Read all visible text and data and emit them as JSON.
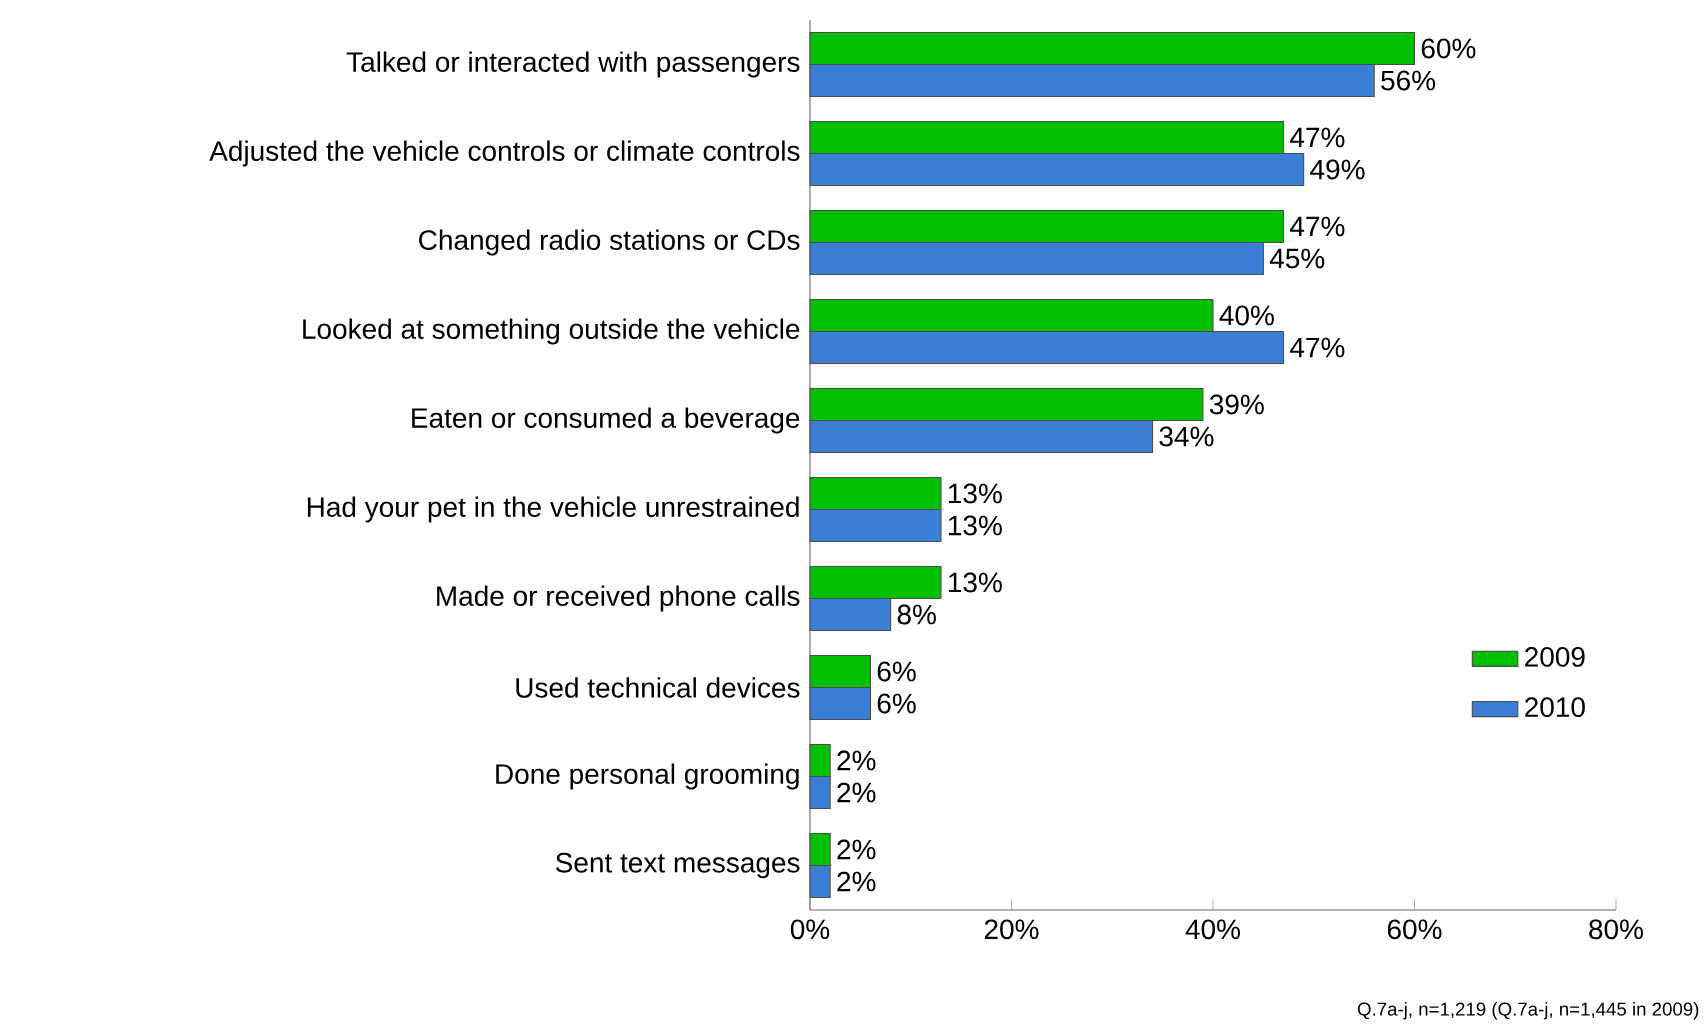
{
  "chart_data": {
    "type": "bar",
    "orientation": "horizontal",
    "categories": [
      "Talked or interacted with passengers",
      "Adjusted the vehicle controls or climate controls",
      "Changed radio stations or CDs",
      "Looked at something outside the vehicle",
      "Eaten or consumed a beverage",
      "Had your pet in the vehicle unrestrained",
      "Made or received phone calls",
      "Used technical devices",
      "Done personal grooming",
      "Sent text messages"
    ],
    "series": [
      {
        "name": "2009",
        "color": "#00c000",
        "values": [
          0.6,
          0.47,
          0.47,
          0.4,
          0.39,
          0.13,
          0.13,
          0.06,
          0.02,
          0.02
        ],
        "value_labels": [
          "60%",
          "47%",
          "47%",
          "40%",
          "39%",
          "13%",
          "13%",
          "6%",
          "2%",
          "2%"
        ]
      },
      {
        "name": "2010",
        "color": "#3a7fd5",
        "values": [
          0.56,
          0.49,
          0.45,
          0.47,
          0.34,
          0.13,
          0.08,
          0.06,
          0.02,
          0.02
        ],
        "value_labels": [
          "56%",
          "49%",
          "45%",
          "47%",
          "34%",
          "13%",
          "8%",
          "6%",
          "2%",
          "2%"
        ]
      }
    ],
    "xlim": [
      0,
      0.8
    ],
    "xticks": [
      {
        "value": 0,
        "label": "0%"
      },
      {
        "value": 0.2,
        "label": "20%"
      },
      {
        "value": 0.4,
        "label": "40%"
      },
      {
        "value": 0.6,
        "label": "60%"
      },
      {
        "value": 0.8,
        "label": "80%"
      }
    ],
    "grid": false,
    "legend": "bottom right",
    "annotations": [
      "Q.7a-j, n=1,219 (Q.7a-j, n=1,445 in 2009)"
    ]
  }
}
